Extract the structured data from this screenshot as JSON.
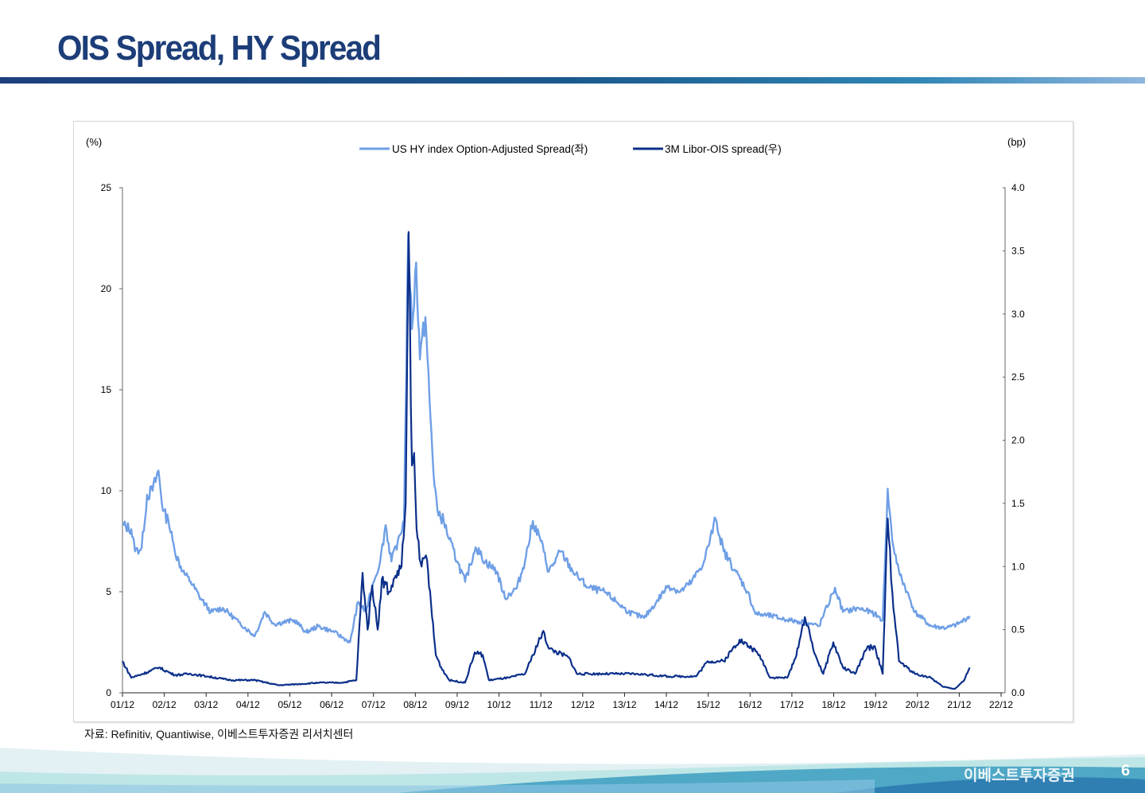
{
  "page": {
    "title": "OIS Spread, HY Spread",
    "source": "자료: Refinitiv, Quantiwise, 이베스트투자증권 리서치센터",
    "brand": "이베스트투자증권",
    "page_number": "6"
  },
  "chart_data": {
    "type": "line",
    "left_unit": "(%)",
    "right_unit": "(bp)",
    "x_ticks": [
      "01/12",
      "02/12",
      "03/12",
      "04/12",
      "05/12",
      "06/12",
      "07/12",
      "08/12",
      "09/12",
      "10/12",
      "11/12",
      "12/12",
      "13/12",
      "14/12",
      "15/12",
      "16/12",
      "17/12",
      "18/12",
      "19/12",
      "20/12",
      "21/12",
      "22/12"
    ],
    "x_note": "x values are years elapsed since 01/12",
    "xlim": [
      0,
      21
    ],
    "ylim_left": [
      0,
      25
    ],
    "y_ticks_left": [
      "0",
      "5",
      "10",
      "15",
      "20",
      "25"
    ],
    "ylim_right": [
      0,
      4
    ],
    "y_ticks_right": [
      "0.0",
      "0.5",
      "1.0",
      "1.5",
      "2.0",
      "2.5",
      "3.0",
      "3.5",
      "4.0"
    ],
    "series": [
      {
        "name": "US HY index Option-Adjusted Spread(좌)",
        "axis": "left",
        "color": "#6f9fe6",
        "points": [
          [
            0,
            8.3
          ],
          [
            0.21,
            8.1
          ],
          [
            0.3,
            7.0
          ],
          [
            0.46,
            7.2
          ],
          [
            0.59,
            9.8
          ],
          [
            0.72,
            10.0
          ],
          [
            0.86,
            11.0
          ],
          [
            0.97,
            9.0
          ],
          [
            1.1,
            8.5
          ],
          [
            1.25,
            7.0
          ],
          [
            1.44,
            6.0
          ],
          [
            1.63,
            5.5
          ],
          [
            1.83,
            4.8
          ],
          [
            2.11,
            4.0
          ],
          [
            2.4,
            4.2
          ],
          [
            2.78,
            3.5
          ],
          [
            3.16,
            2.8
          ],
          [
            3.4,
            4.0
          ],
          [
            3.63,
            3.4
          ],
          [
            4.11,
            3.6
          ],
          [
            4.39,
            3.0
          ],
          [
            4.68,
            3.3
          ],
          [
            5.06,
            3.0
          ],
          [
            5.44,
            2.5
          ],
          [
            5.63,
            4.5
          ],
          [
            5.82,
            4.0
          ],
          [
            6.01,
            5.5
          ],
          [
            6.16,
            6.5
          ],
          [
            6.29,
            8.3
          ],
          [
            6.43,
            6.5
          ],
          [
            6.58,
            7.5
          ],
          [
            6.73,
            8.5
          ],
          [
            6.83,
            22.7
          ],
          [
            6.92,
            18.0
          ],
          [
            7.02,
            21.3
          ],
          [
            7.11,
            16.5
          ],
          [
            7.24,
            18.6
          ],
          [
            7.34,
            14.5
          ],
          [
            7.43,
            11.0
          ],
          [
            7.53,
            9.0
          ],
          [
            7.68,
            8.5
          ],
          [
            7.81,
            7.6
          ],
          [
            8.0,
            6.5
          ],
          [
            8.19,
            5.5
          ],
          [
            8.44,
            7.2
          ],
          [
            8.67,
            6.5
          ],
          [
            8.95,
            6.0
          ],
          [
            9.14,
            4.7
          ],
          [
            9.43,
            5.2
          ],
          [
            9.62,
            6.5
          ],
          [
            9.81,
            8.5
          ],
          [
            10.0,
            7.5
          ],
          [
            10.19,
            6.0
          ],
          [
            10.48,
            7.0
          ],
          [
            10.76,
            6.0
          ],
          [
            11.14,
            5.2
          ],
          [
            11.52,
            5.0
          ],
          [
            11.81,
            4.5
          ],
          [
            12.09,
            4.0
          ],
          [
            12.47,
            3.7
          ],
          [
            12.76,
            4.5
          ],
          [
            13.04,
            5.3
          ],
          [
            13.33,
            5.0
          ],
          [
            13.61,
            5.5
          ],
          [
            13.9,
            6.5
          ],
          [
            14.18,
            8.6
          ],
          [
            14.37,
            7.0
          ],
          [
            14.66,
            6.0
          ],
          [
            14.94,
            5.0
          ],
          [
            15.13,
            3.9
          ],
          [
            15.51,
            3.8
          ],
          [
            15.89,
            3.6
          ],
          [
            16.27,
            3.5
          ],
          [
            16.65,
            3.3
          ],
          [
            17.03,
            5.2
          ],
          [
            17.22,
            4.0
          ],
          [
            17.6,
            4.2
          ],
          [
            17.98,
            3.9
          ],
          [
            18.17,
            3.6
          ],
          [
            18.29,
            10.1
          ],
          [
            18.4,
            7.5
          ],
          [
            18.56,
            6.0
          ],
          [
            18.75,
            5.0
          ],
          [
            18.94,
            4.0
          ],
          [
            19.32,
            3.3
          ],
          [
            19.7,
            3.2
          ],
          [
            19.98,
            3.4
          ],
          [
            20.25,
            3.8
          ]
        ]
      },
      {
        "name": "3M Libor-OIS spread(우)",
        "axis": "right",
        "color": "#0b2f8a",
        "points": [
          [
            0,
            0.25
          ],
          [
            0.21,
            0.12
          ],
          [
            0.49,
            0.15
          ],
          [
            0.87,
            0.2
          ],
          [
            1.25,
            0.14
          ],
          [
            1.63,
            0.15
          ],
          [
            2.02,
            0.13
          ],
          [
            2.59,
            0.1
          ],
          [
            3.16,
            0.1
          ],
          [
            3.73,
            0.06
          ],
          [
            4.3,
            0.07
          ],
          [
            4.68,
            0.08
          ],
          [
            5.25,
            0.08
          ],
          [
            5.59,
            0.1
          ],
          [
            5.74,
            0.95
          ],
          [
            5.86,
            0.5
          ],
          [
            5.97,
            0.85
          ],
          [
            6.1,
            0.5
          ],
          [
            6.2,
            0.9
          ],
          [
            6.39,
            0.8
          ],
          [
            6.48,
            0.9
          ],
          [
            6.67,
            1.0
          ],
          [
            6.77,
            1.5
          ],
          [
            6.84,
            3.65
          ],
          [
            6.92,
            1.8
          ],
          [
            6.97,
            1.9
          ],
          [
            7.03,
            1.3
          ],
          [
            7.15,
            1.0
          ],
          [
            7.28,
            1.05
          ],
          [
            7.4,
            0.6
          ],
          [
            7.49,
            0.3
          ],
          [
            7.62,
            0.2
          ],
          [
            7.81,
            0.1
          ],
          [
            8.19,
            0.08
          ],
          [
            8.42,
            0.32
          ],
          [
            8.61,
            0.3
          ],
          [
            8.76,
            0.1
          ],
          [
            9.24,
            0.12
          ],
          [
            9.62,
            0.15
          ],
          [
            9.81,
            0.3
          ],
          [
            10.06,
            0.49
          ],
          [
            10.19,
            0.35
          ],
          [
            10.67,
            0.28
          ],
          [
            10.86,
            0.15
          ],
          [
            11.52,
            0.15
          ],
          [
            12.28,
            0.15
          ],
          [
            13.04,
            0.13
          ],
          [
            13.71,
            0.13
          ],
          [
            13.99,
            0.25
          ],
          [
            14.37,
            0.25
          ],
          [
            14.75,
            0.42
          ],
          [
            15.04,
            0.35
          ],
          [
            15.23,
            0.3
          ],
          [
            15.48,
            0.12
          ],
          [
            15.89,
            0.12
          ],
          [
            16.08,
            0.27
          ],
          [
            16.31,
            0.6
          ],
          [
            16.56,
            0.3
          ],
          [
            16.75,
            0.15
          ],
          [
            16.99,
            0.4
          ],
          [
            17.22,
            0.2
          ],
          [
            17.51,
            0.15
          ],
          [
            17.79,
            0.35
          ],
          [
            17.98,
            0.37
          ],
          [
            18.17,
            0.15
          ],
          [
            18.29,
            1.38
          ],
          [
            18.4,
            0.8
          ],
          [
            18.56,
            0.25
          ],
          [
            18.94,
            0.15
          ],
          [
            19.32,
            0.12
          ],
          [
            19.6,
            0.05
          ],
          [
            19.89,
            0.03
          ],
          [
            20.12,
            0.1
          ],
          [
            20.25,
            0.2
          ]
        ]
      }
    ]
  }
}
